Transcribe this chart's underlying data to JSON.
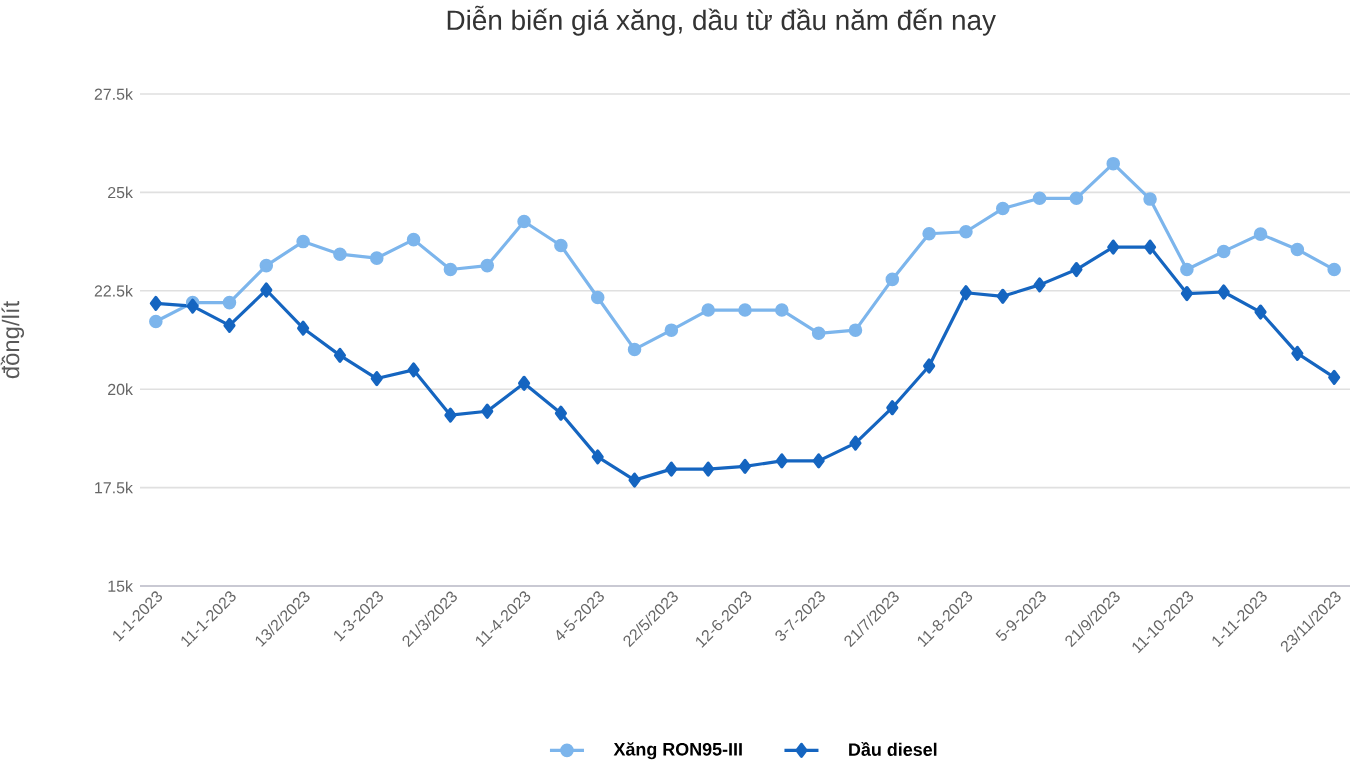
{
  "chart_data": {
    "type": "line",
    "title": "Diễn biến giá xăng, dầu từ đầu năm đến nay",
    "ylabel": "đồng/lít",
    "categories": [
      "1-1-2023",
      null,
      "11-1-2023",
      null,
      "13/2/2023",
      null,
      "1-3-2023",
      null,
      "21/3/2023",
      null,
      "11-4-2023",
      null,
      "4-5-2023",
      null,
      "22/5/2023",
      null,
      "12-6-2023",
      null,
      "3-7-2023",
      null,
      "21/7/2023",
      null,
      "11-8-2023",
      null,
      "5-9-2023",
      null,
      "21/9/2023",
      null,
      "11-10-2023",
      null,
      "1-11-2023",
      null,
      "23/11/2023"
    ],
    "series": [
      {
        "name": "Xăng RON95-III",
        "color": "#7cb5ec",
        "marker": "circle",
        "values": [
          21720,
          22200,
          22200,
          23140,
          23750,
          23430,
          23330,
          23800,
          23040,
          23140,
          24260,
          23650,
          22330,
          21010,
          21500,
          22010,
          22010,
          22010,
          21420,
          21500,
          22790,
          23950,
          24000,
          24590,
          24850,
          24850,
          25730,
          24830,
          23040,
          23500,
          23940,
          23550,
          23040
        ]
      },
      {
        "name": "Dầu diesel",
        "color": "#1565c0",
        "marker": "diamond",
        "values": [
          22180,
          22110,
          21620,
          22520,
          21550,
          20860,
          20270,
          20490,
          19340,
          19440,
          20150,
          19390,
          18280,
          17690,
          17970,
          17970,
          18040,
          18180,
          18180,
          18630,
          19530,
          20590,
          22450,
          22360,
          22650,
          23040,
          23610,
          23610,
          22430,
          22470,
          21960,
          20910,
          20300
        ]
      }
    ],
    "ylim": [
      15000,
      27500
    ],
    "yticks": [
      {
        "value": 15000,
        "label": "15k"
      },
      {
        "value": 17500,
        "label": "17.5k"
      },
      {
        "value": 20000,
        "label": "20k"
      },
      {
        "value": 22500,
        "label": "22.5k"
      },
      {
        "value": 25000,
        "label": "25k"
      },
      {
        "value": 27500,
        "label": "27.5k"
      }
    ],
    "grid": "y",
    "legend": "bottom",
    "line_style": "solid"
  }
}
